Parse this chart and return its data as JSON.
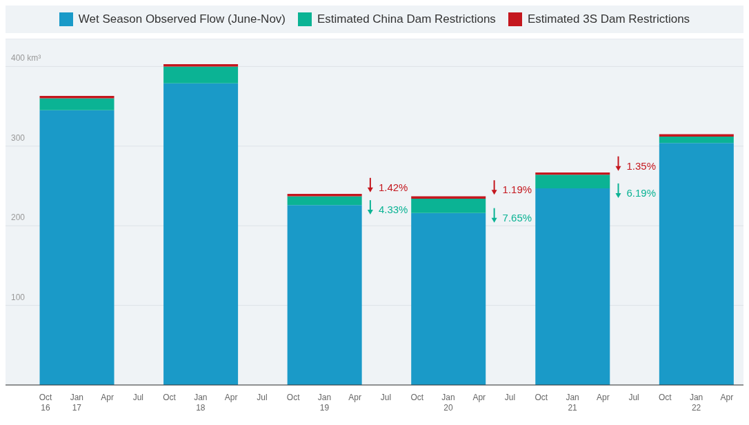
{
  "chart_data": {
    "type": "bar",
    "stacked": true,
    "x": [
      "2017-01",
      "2018-01",
      "2019-01",
      "2020-01",
      "2021-01",
      "2022-01"
    ],
    "series": [
      {
        "name": "Wet Season Observed Flow (June-Nov)",
        "color": "#1a9ac8",
        "values": [
          345,
          379,
          226,
          216,
          247,
          304
        ]
      },
      {
        "name": "Estimated China Dam Restrictions",
        "color": "#0bb394",
        "values": [
          15,
          21,
          11,
          18,
          17,
          8
        ]
      },
      {
        "name": "Estimated 3S Dam Restrictions",
        "color": "#c4171e",
        "values": [
          3,
          3,
          3,
          3,
          3,
          3
        ]
      }
    ],
    "xlim": [
      "2016-06-05",
      "2022-05-20"
    ],
    "xticks": [
      {
        "value": "2016-10",
        "label": "Oct\n16"
      },
      {
        "value": "2017-01",
        "label": "Jan\n17"
      },
      {
        "value": "2017-04",
        "label": "Apr"
      },
      {
        "value": "2017-07",
        "label": "Jul"
      },
      {
        "value": "2017-10",
        "label": "Oct"
      },
      {
        "value": "2018-01",
        "label": "Jan\n18"
      },
      {
        "value": "2018-04",
        "label": "Apr"
      },
      {
        "value": "2018-07",
        "label": "Jul"
      },
      {
        "value": "2018-10",
        "label": "Oct"
      },
      {
        "value": "2019-01",
        "label": "Jan\n19"
      },
      {
        "value": "2019-04",
        "label": "Apr"
      },
      {
        "value": "2019-07",
        "label": "Jul"
      },
      {
        "value": "2019-10",
        "label": "Oct"
      },
      {
        "value": "2020-01",
        "label": "Jan\n20"
      },
      {
        "value": "2020-04",
        "label": "Apr"
      },
      {
        "value": "2020-07",
        "label": "Jul"
      },
      {
        "value": "2020-10",
        "label": "Oct"
      },
      {
        "value": "2021-01",
        "label": "Jan\n21"
      },
      {
        "value": "2021-04",
        "label": "Apr"
      },
      {
        "value": "2021-07",
        "label": "Jul"
      },
      {
        "value": "2021-10",
        "label": "Oct"
      },
      {
        "value": "2022-01",
        "label": "Jan\n22"
      },
      {
        "value": "2022-04",
        "label": "Apr"
      }
    ],
    "ylim": [
      0,
      435
    ],
    "yticks": [
      {
        "value": 0,
        "label": null
      },
      100,
      200,
      300,
      {
        "value": 400,
        "label": "400 km³"
      }
    ],
    "grid": "y",
    "legend": "top",
    "annotations": [
      "1.42%",
      "4.33%",
      "1.19%",
      "7.65%",
      "1.35%",
      "6.19%"
    ]
  }
}
